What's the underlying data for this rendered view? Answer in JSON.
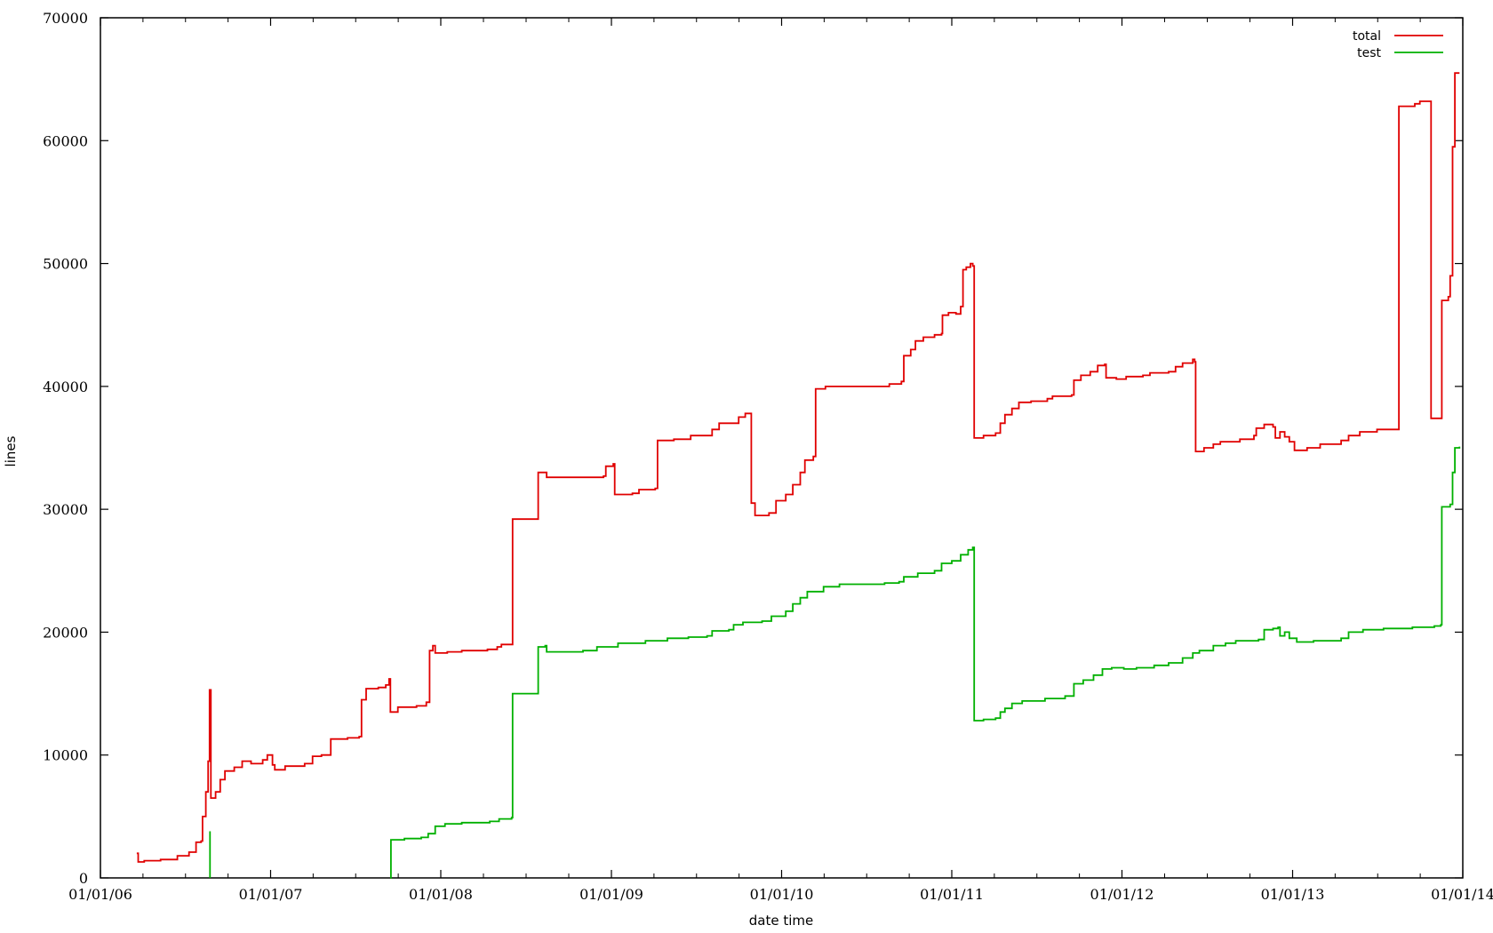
{
  "chart_data": {
    "type": "line",
    "title": "",
    "xlabel": "date time",
    "ylabel": "lines",
    "xlim": [
      "2006-01-01",
      "2014-01-01"
    ],
    "ylim": [
      0,
      70000
    ],
    "x_tick_labels": [
      "01/01/06",
      "01/01/07",
      "01/01/08",
      "01/01/09",
      "01/01/10",
      "01/01/11",
      "01/01/12",
      "01/01/13",
      "01/01/14"
    ],
    "x_tick_dates": [
      "2006-01-01",
      "2007-01-01",
      "2008-01-01",
      "2009-01-01",
      "2010-01-01",
      "2011-01-01",
      "2012-01-01",
      "2013-01-01",
      "2014-01-01"
    ],
    "y_ticks": [
      0,
      10000,
      20000,
      30000,
      40000,
      50000,
      60000,
      70000
    ],
    "y_tick_labels": [
      "0",
      "10000",
      "20000",
      "30000",
      "40000",
      "50000",
      "60000",
      "70000"
    ],
    "grid": false,
    "legend_position": "top-right",
    "series": [
      {
        "name": "total",
        "color": "#e00000",
        "points": [
          [
            "2006-03-20",
            2000
          ],
          [
            "2006-03-23",
            1300
          ],
          [
            "2006-04-05",
            1400
          ],
          [
            "2006-05-10",
            1500
          ],
          [
            "2006-06-15",
            1800
          ],
          [
            "2006-07-10",
            2100
          ],
          [
            "2006-07-25",
            2900
          ],
          [
            "2006-08-05",
            3000
          ],
          [
            "2006-08-08",
            5000
          ],
          [
            "2006-08-15",
            7000
          ],
          [
            "2006-08-20",
            9500
          ],
          [
            "2006-08-23",
            15300
          ],
          [
            "2006-08-26",
            6500
          ],
          [
            "2006-09-05",
            7000
          ],
          [
            "2006-09-15",
            8000
          ],
          [
            "2006-09-25",
            8700
          ],
          [
            "2006-10-15",
            9000
          ],
          [
            "2006-11-01",
            9500
          ],
          [
            "2006-11-20",
            9300
          ],
          [
            "2006-12-15",
            9600
          ],
          [
            "2006-12-25",
            10000
          ],
          [
            "2007-01-05",
            9200
          ],
          [
            "2007-01-10",
            8800
          ],
          [
            "2007-02-01",
            9100
          ],
          [
            "2007-03-15",
            9300
          ],
          [
            "2007-04-01",
            9900
          ],
          [
            "2007-04-20",
            10000
          ],
          [
            "2007-05-10",
            11300
          ],
          [
            "2007-06-15",
            11400
          ],
          [
            "2007-07-10",
            11500
          ],
          [
            "2007-07-15",
            14500
          ],
          [
            "2007-07-25",
            15400
          ],
          [
            "2007-08-20",
            15500
          ],
          [
            "2007-09-05",
            15700
          ],
          [
            "2007-09-12",
            16200
          ],
          [
            "2007-09-15",
            13500
          ],
          [
            "2007-10-01",
            13900
          ],
          [
            "2007-11-10",
            14000
          ],
          [
            "2007-12-01",
            14300
          ],
          [
            "2007-12-08",
            18500
          ],
          [
            "2007-12-15",
            18900
          ],
          [
            "2007-12-20",
            18300
          ],
          [
            "2008-01-15",
            18400
          ],
          [
            "2008-02-15",
            18500
          ],
          [
            "2008-04-10",
            18600
          ],
          [
            "2008-05-01",
            18800
          ],
          [
            "2008-05-10",
            19000
          ],
          [
            "2008-06-01",
            19000
          ],
          [
            "2008-06-03",
            29200
          ],
          [
            "2008-07-20",
            29200
          ],
          [
            "2008-07-28",
            33000
          ],
          [
            "2008-08-15",
            32600
          ],
          [
            "2008-10-20",
            32600
          ],
          [
            "2008-12-15",
            32700
          ],
          [
            "2008-12-20",
            33500
          ],
          [
            "2009-01-05",
            33700
          ],
          [
            "2009-01-08",
            31200
          ],
          [
            "2009-02-15",
            31300
          ],
          [
            "2009-03-01",
            31600
          ],
          [
            "2009-04-05",
            31700
          ],
          [
            "2009-04-10",
            35600
          ],
          [
            "2009-05-15",
            35700
          ],
          [
            "2009-06-20",
            36000
          ],
          [
            "2009-07-25",
            36000
          ],
          [
            "2009-08-05",
            36500
          ],
          [
            "2009-08-20",
            37000
          ],
          [
            "2009-09-20",
            37000
          ],
          [
            "2009-10-01",
            37500
          ],
          [
            "2009-10-15",
            37800
          ],
          [
            "2009-10-25",
            37800
          ],
          [
            "2009-10-28",
            30500
          ],
          [
            "2009-11-05",
            29500
          ],
          [
            "2009-12-05",
            29700
          ],
          [
            "2009-12-20",
            30700
          ],
          [
            "2010-01-10",
            31200
          ],
          [
            "2010-01-25",
            32000
          ],
          [
            "2010-02-10",
            33000
          ],
          [
            "2010-02-20",
            34000
          ],
          [
            "2010-03-10",
            34300
          ],
          [
            "2010-03-15",
            39800
          ],
          [
            "2010-04-05",
            40000
          ],
          [
            "2010-06-15",
            40000
          ],
          [
            "2010-08-20",
            40200
          ],
          [
            "2010-09-15",
            40400
          ],
          [
            "2010-09-20",
            42500
          ],
          [
            "2010-10-05",
            43000
          ],
          [
            "2010-10-15",
            43700
          ],
          [
            "2010-11-01",
            44000
          ],
          [
            "2010-11-25",
            44200
          ],
          [
            "2010-12-10",
            44300
          ],
          [
            "2010-12-12",
            45800
          ],
          [
            "2010-12-25",
            46000
          ],
          [
            "2011-01-10",
            45900
          ],
          [
            "2011-01-20",
            46500
          ],
          [
            "2011-01-25",
            49500
          ],
          [
            "2011-02-01",
            49700
          ],
          [
            "2011-02-10",
            50000
          ],
          [
            "2011-02-15",
            49800
          ],
          [
            "2011-02-18",
            35800
          ],
          [
            "2011-03-10",
            36000
          ],
          [
            "2011-04-05",
            36200
          ],
          [
            "2011-04-15",
            37000
          ],
          [
            "2011-04-25",
            37700
          ],
          [
            "2011-05-10",
            38200
          ],
          [
            "2011-05-25",
            38700
          ],
          [
            "2011-06-20",
            38800
          ],
          [
            "2011-07-25",
            39000
          ],
          [
            "2011-08-05",
            39200
          ],
          [
            "2011-09-15",
            39300
          ],
          [
            "2011-09-20",
            40500
          ],
          [
            "2011-10-05",
            40900
          ],
          [
            "2011-10-25",
            41200
          ],
          [
            "2011-11-10",
            41700
          ],
          [
            "2011-11-25",
            41800
          ],
          [
            "2011-11-28",
            40700
          ],
          [
            "2011-12-20",
            40600
          ],
          [
            "2012-01-10",
            40800
          ],
          [
            "2012-02-15",
            40900
          ],
          [
            "2012-03-01",
            41100
          ],
          [
            "2012-04-10",
            41200
          ],
          [
            "2012-04-25",
            41600
          ],
          [
            "2012-05-10",
            41900
          ],
          [
            "2012-06-01",
            42200
          ],
          [
            "2012-06-05",
            42000
          ],
          [
            "2012-06-07",
            34700
          ],
          [
            "2012-06-25",
            35000
          ],
          [
            "2012-07-15",
            35300
          ],
          [
            "2012-07-30",
            35500
          ],
          [
            "2012-09-10",
            35700
          ],
          [
            "2012-10-10",
            36000
          ],
          [
            "2012-10-15",
            36600
          ],
          [
            "2012-11-01",
            36900
          ],
          [
            "2012-11-20",
            36700
          ],
          [
            "2012-11-25",
            35800
          ],
          [
            "2012-12-05",
            36300
          ],
          [
            "2012-12-15",
            35900
          ],
          [
            "2012-12-25",
            35500
          ],
          [
            "2013-01-05",
            34800
          ],
          [
            "2013-02-01",
            35000
          ],
          [
            "2013-03-01",
            35300
          ],
          [
            "2013-04-15",
            35600
          ],
          [
            "2013-05-01",
            36000
          ],
          [
            "2013-05-25",
            36300
          ],
          [
            "2013-07-01",
            36500
          ],
          [
            "2013-08-15",
            36500
          ],
          [
            "2013-08-17",
            62800
          ],
          [
            "2013-09-20",
            63000
          ],
          [
            "2013-10-01",
            63200
          ],
          [
            "2013-10-20",
            63200
          ],
          [
            "2013-10-25",
            37400
          ],
          [
            "2013-11-15",
            37400
          ],
          [
            "2013-11-17",
            47000
          ],
          [
            "2013-12-01",
            47300
          ],
          [
            "2013-12-05",
            49000
          ],
          [
            "2013-12-10",
            59500
          ],
          [
            "2013-12-15",
            65500
          ],
          [
            "2013-12-25",
            65500
          ]
        ]
      },
      {
        "name": "test",
        "color": "#00b000",
        "segments": [
          [
            [
              "2006-08-24",
              3800
            ],
            [
              "2006-08-24",
              0
            ]
          ],
          [
            [
              "2007-09-15",
              0
            ],
            [
              "2007-09-16",
              3100
            ],
            [
              "2007-10-15",
              3200
            ],
            [
              "2007-11-20",
              3300
            ],
            [
              "2007-12-05",
              3600
            ],
            [
              "2007-12-20",
              4200
            ],
            [
              "2008-01-10",
              4400
            ],
            [
              "2008-02-15",
              4500
            ],
            [
              "2008-04-15",
              4600
            ],
            [
              "2008-05-05",
              4800
            ],
            [
              "2008-06-01",
              4900
            ],
            [
              "2008-06-03",
              15000
            ],
            [
              "2008-07-20",
              15000
            ],
            [
              "2008-07-28",
              18800
            ],
            [
              "2008-08-12",
              18900
            ],
            [
              "2008-08-15",
              18400
            ],
            [
              "2008-11-01",
              18500
            ],
            [
              "2008-12-01",
              18800
            ],
            [
              "2009-01-15",
              19100
            ],
            [
              "2009-03-15",
              19300
            ],
            [
              "2009-05-01",
              19500
            ],
            [
              "2009-06-15",
              19600
            ],
            [
              "2009-07-25",
              19700
            ],
            [
              "2009-08-05",
              20100
            ],
            [
              "2009-09-10",
              20200
            ],
            [
              "2009-09-20",
              20600
            ],
            [
              "2009-10-10",
              20800
            ],
            [
              "2009-11-20",
              20900
            ],
            [
              "2009-12-10",
              21300
            ],
            [
              "2010-01-10",
              21700
            ],
            [
              "2010-01-25",
              22300
            ],
            [
              "2010-02-10",
              22800
            ],
            [
              "2010-02-25",
              23300
            ],
            [
              "2010-04-01",
              23700
            ],
            [
              "2010-05-05",
              23900
            ],
            [
              "2010-07-25",
              23900
            ],
            [
              "2010-08-10",
              24000
            ],
            [
              "2010-09-10",
              24100
            ],
            [
              "2010-09-20",
              24500
            ],
            [
              "2010-10-20",
              24800
            ],
            [
              "2010-11-25",
              25000
            ],
            [
              "2010-12-10",
              25600
            ],
            [
              "2011-01-01",
              25800
            ],
            [
              "2011-01-20",
              26300
            ],
            [
              "2011-02-05",
              26700
            ],
            [
              "2011-02-15",
              26900
            ],
            [
              "2011-02-18",
              12800
            ],
            [
              "2011-03-10",
              12900
            ],
            [
              "2011-04-05",
              13000
            ],
            [
              "2011-04-15",
              13500
            ],
            [
              "2011-04-25",
              13800
            ],
            [
              "2011-05-10",
              14200
            ],
            [
              "2011-06-01",
              14400
            ],
            [
              "2011-07-20",
              14600
            ],
            [
              "2011-09-01",
              14800
            ],
            [
              "2011-09-20",
              15800
            ],
            [
              "2011-10-10",
              16100
            ],
            [
              "2011-11-01",
              16500
            ],
            [
              "2011-11-20",
              17000
            ],
            [
              "2011-12-10",
              17100
            ],
            [
              "2012-01-05",
              17000
            ],
            [
              "2012-02-01",
              17100
            ],
            [
              "2012-03-10",
              17300
            ],
            [
              "2012-04-10",
              17500
            ],
            [
              "2012-05-10",
              17900
            ],
            [
              "2012-06-01",
              18300
            ],
            [
              "2012-06-15",
              18500
            ],
            [
              "2012-07-15",
              18900
            ],
            [
              "2012-08-10",
              19100
            ],
            [
              "2012-09-01",
              19300
            ],
            [
              "2012-10-20",
              19400
            ],
            [
              "2012-11-01",
              20200
            ],
            [
              "2012-11-20",
              20300
            ],
            [
              "2012-12-01",
              20400
            ],
            [
              "2012-12-05",
              19700
            ],
            [
              "2012-12-15",
              20000
            ],
            [
              "2012-12-25",
              19500
            ],
            [
              "2013-01-10",
              19200
            ],
            [
              "2013-02-15",
              19300
            ],
            [
              "2013-04-15",
              19500
            ],
            [
              "2013-05-01",
              20000
            ],
            [
              "2013-06-01",
              20200
            ],
            [
              "2013-07-15",
              20300
            ],
            [
              "2013-09-15",
              20400
            ],
            [
              "2013-11-01",
              20500
            ],
            [
              "2013-11-15",
              20600
            ],
            [
              "2013-11-17",
              30200
            ],
            [
              "2013-12-05",
              30400
            ],
            [
              "2013-12-10",
              33000
            ],
            [
              "2013-12-15",
              35000
            ],
            [
              "2013-12-25",
              35100
            ]
          ]
        ]
      }
    ]
  }
}
